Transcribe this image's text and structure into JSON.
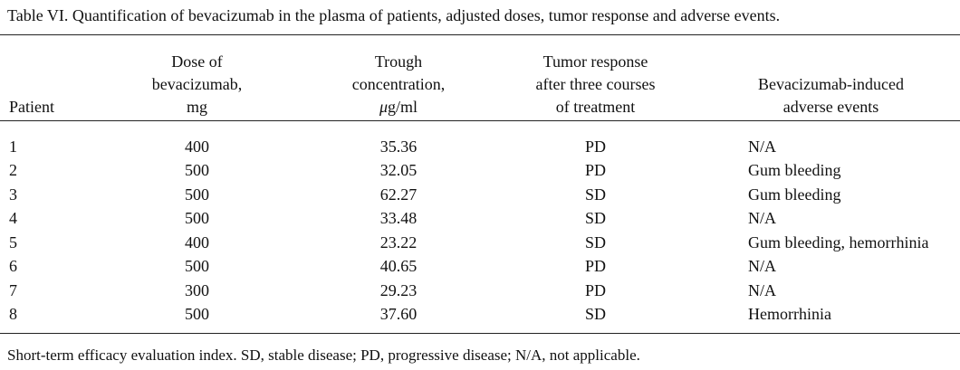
{
  "caption": "Table VI. Quantification of bevacizumab in the plasma of patients, adjusted doses, tumor response and adverse events.",
  "headers": {
    "patient": "Patient",
    "dose": [
      "Dose of",
      "bevacizumab,",
      "mg"
    ],
    "trough": [
      "Trough",
      "concentration,"
    ],
    "trough_unit_mu": "μ",
    "trough_unit_rest": "g/ml",
    "response": [
      "Tumor response",
      "after three courses",
      "of treatment"
    ],
    "adverse": [
      "Bevacizumab-induced",
      "adverse events"
    ]
  },
  "rows": [
    {
      "patient": "1",
      "dose": "400",
      "trough": "35.36",
      "response": "PD",
      "adverse": "N/A"
    },
    {
      "patient": "2",
      "dose": "500",
      "trough": "32.05",
      "response": "PD",
      "adverse": "Gum bleeding"
    },
    {
      "patient": "3",
      "dose": "500",
      "trough": "62.27",
      "response": "SD",
      "adverse": "Gum bleeding"
    },
    {
      "patient": "4",
      "dose": "500",
      "trough": "33.48",
      "response": "SD",
      "adverse": "N/A"
    },
    {
      "patient": "5",
      "dose": "400",
      "trough": "23.22",
      "response": "SD",
      "adverse": "Gum bleeding, hemorrhinia"
    },
    {
      "patient": "6",
      "dose": "500",
      "trough": "40.65",
      "response": "PD",
      "adverse": "N/A"
    },
    {
      "patient": "7",
      "dose": "300",
      "trough": "29.23",
      "response": "PD",
      "adverse": "N/A"
    },
    {
      "patient": "8",
      "dose": "500",
      "trough": "37.60",
      "response": "SD",
      "adverse": "Hemorrhinia"
    }
  ],
  "footnote": "Short-term efficacy evaluation index. SD, stable disease; PD, progressive disease; N/A, not applicable."
}
